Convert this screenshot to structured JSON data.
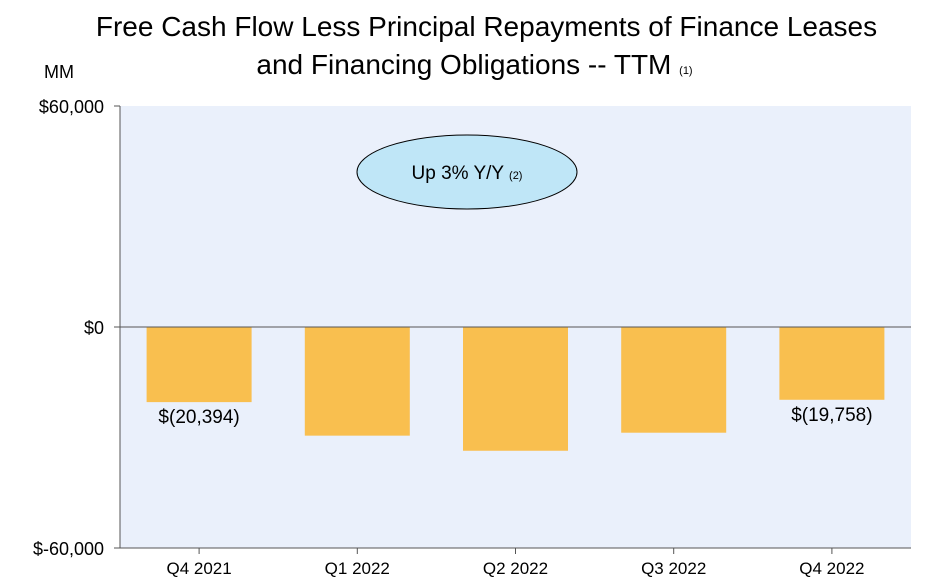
{
  "chart_data": {
    "type": "bar",
    "title_line1": "Free Cash Flow Less Principal Repayments of Finance Leases",
    "title_line2": "and Financing Obligations -- TTM",
    "title_note": "(1)",
    "ylabel": "MM",
    "categories": [
      "Q4 2021",
      "Q1 2022",
      "Q2 2022",
      "Q3 2022",
      "Q4 2022"
    ],
    "values": [
      -20394,
      -29500,
      -33600,
      -28700,
      -19758
    ],
    "data_labels": [
      "$(20,394)",
      "",
      "",
      "",
      "$(19,758)"
    ],
    "ylim": [
      -60000,
      60000
    ],
    "yticks": [
      60000,
      0,
      -60000
    ],
    "ytick_labels": [
      "$60,000",
      "$0",
      "$-60,000"
    ],
    "annotation": "Up 3% Y/Y",
    "annotation_note": "(2)",
    "colors": {
      "bar": "#F9BF4F",
      "plot_bg": "#EAF0FB",
      "annotation_fill": "#BFE6F7",
      "axis": "#555555"
    }
  }
}
